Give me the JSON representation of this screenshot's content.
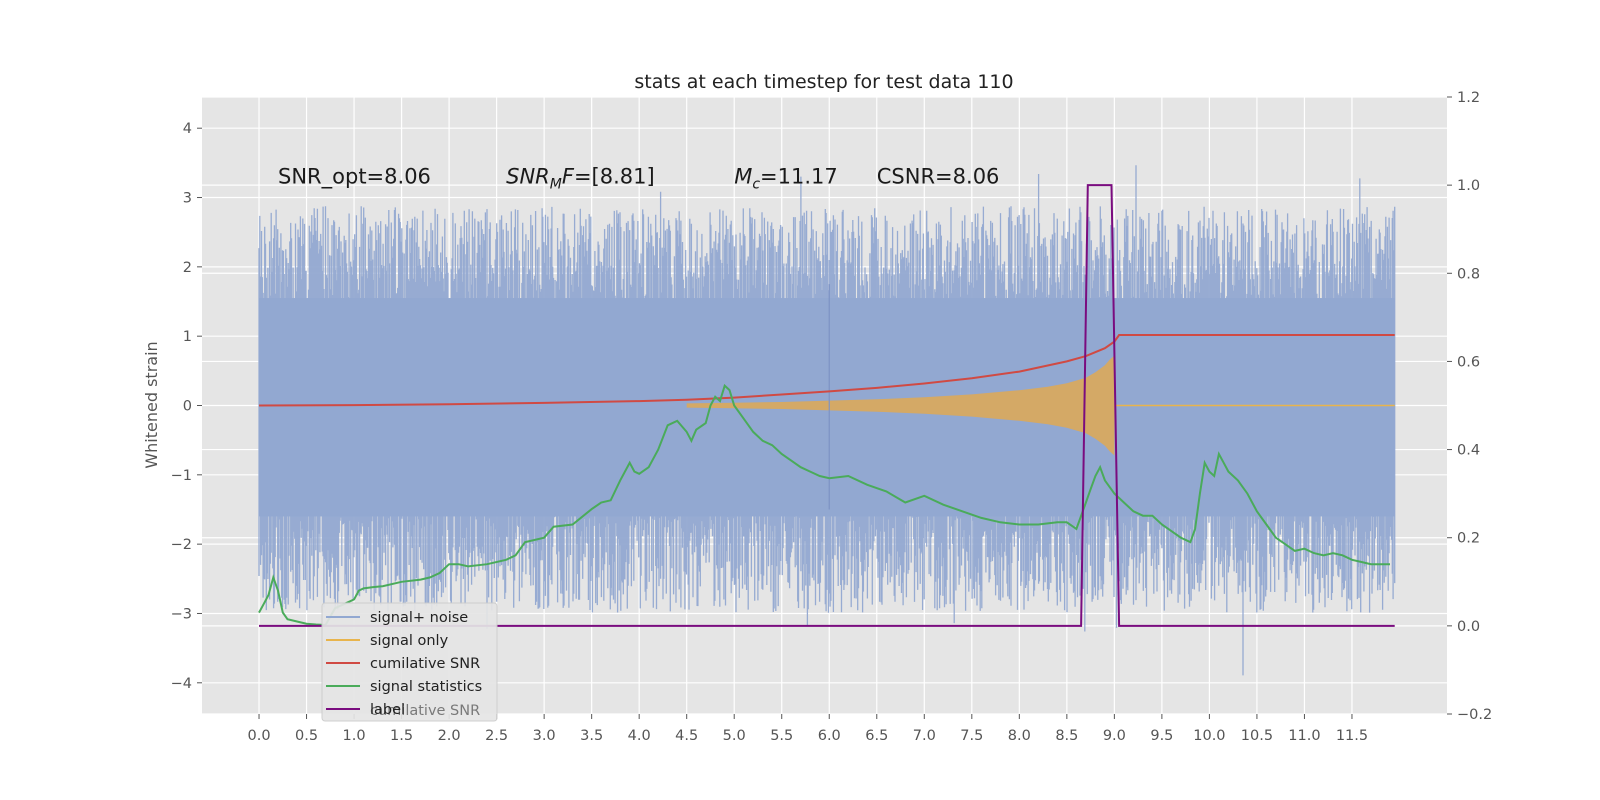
{
  "chart_data": {
    "type": "line",
    "title": "stats at each timestep for test data 110",
    "xlabel": "",
    "ylabel": "Whitened strain",
    "xlim": [
      -0.6,
      12.5
    ],
    "ylim": [
      -4.45,
      4.45
    ],
    "y2lim": [
      -0.2,
      1.2
    ],
    "x_ticks": [
      0.0,
      0.5,
      1.0,
      1.5,
      2.0,
      2.5,
      3.0,
      3.5,
      4.0,
      4.5,
      5.0,
      5.5,
      6.0,
      6.5,
      7.0,
      7.5,
      8.0,
      8.5,
      9.0,
      9.5,
      10.0,
      10.5,
      11.0,
      11.5
    ],
    "x_tick_labels": [
      "0.0",
      "0.5",
      "1.0",
      "1.5",
      "2.0",
      "2.5",
      "3.0",
      "3.5",
      "4.0",
      "4.5",
      "5.0",
      "5.5",
      "6.0",
      "6.5",
      "7.0",
      "7.5",
      "8.0",
      "8.5",
      "9.0",
      "9.5",
      "10.0",
      "10.5",
      "11.0",
      "11.5"
    ],
    "y_ticks": [
      -4,
      -3,
      -2,
      -1,
      0,
      1,
      2,
      3,
      4
    ],
    "y_tick_labels": [
      "−4",
      "−3",
      "−2",
      "−1",
      "0",
      "1",
      "2",
      "3",
      "4"
    ],
    "y2_ticks": [
      -0.2,
      0.0,
      0.2,
      0.4,
      0.6,
      0.8,
      1.0,
      1.2
    ],
    "y2_tick_labels": [
      "−0.2",
      "0.0",
      "0.2",
      "0.4",
      "0.6",
      "0.8",
      "1.0",
      "1.2"
    ],
    "grid": true,
    "legend_position": "lower-left",
    "annotations": [
      {
        "text": "SNR_opt=8.06",
        "x": 0.2,
        "y": 3.3
      },
      {
        "text": "SNR_MF=[8.81]",
        "x": 2.6,
        "y": 3.3
      },
      {
        "text": "M_c=11.17",
        "x": 5.0,
        "y": 3.3
      },
      {
        "text": "CSNR=8.06",
        "x": 6.5,
        "y": 3.3
      }
    ],
    "noise_band": {
      "x_start": 0.0,
      "x_end": 11.95,
      "y_low": -2.6,
      "y_high": 2.5
    },
    "signal_envelope": [
      [
        4.5,
        0.03
      ],
      [
        5.0,
        0.04
      ],
      [
        5.5,
        0.05
      ],
      [
        6.0,
        0.07
      ],
      [
        6.5,
        0.09
      ],
      [
        7.0,
        0.12
      ],
      [
        7.5,
        0.16
      ],
      [
        8.0,
        0.22
      ],
      [
        8.3,
        0.27
      ],
      [
        8.5,
        0.32
      ],
      [
        8.7,
        0.4
      ],
      [
        8.8,
        0.48
      ],
      [
        8.9,
        0.58
      ],
      [
        8.95,
        0.66
      ],
      [
        9.0,
        0.72
      ]
    ],
    "series": [
      {
        "name": "signal+ noise",
        "axis": "left",
        "color": "#92a8d1",
        "note_style": "dense noise"
      },
      {
        "name": "signal only",
        "axis": "left",
        "color": "#e8b44c"
      },
      {
        "name": "cumilative SNR",
        "axis": "right",
        "color": "#d04a43",
        "points": [
          [
            0.0,
            0.5
          ],
          [
            1.0,
            0.501
          ],
          [
            2.0,
            0.503
          ],
          [
            3.0,
            0.506
          ],
          [
            4.0,
            0.51
          ],
          [
            4.5,
            0.513
          ],
          [
            5.0,
            0.518
          ],
          [
            5.5,
            0.525
          ],
          [
            6.0,
            0.532
          ],
          [
            6.5,
            0.54
          ],
          [
            7.0,
            0.55
          ],
          [
            7.5,
            0.562
          ],
          [
            8.0,
            0.577
          ],
          [
            8.5,
            0.6
          ],
          [
            8.7,
            0.612
          ],
          [
            8.9,
            0.63
          ],
          [
            9.0,
            0.645
          ],
          [
            9.05,
            0.66
          ],
          [
            11.95,
            0.66
          ]
        ]
      },
      {
        "name": "signal statistics",
        "axis": "right",
        "color": "#4aab5a",
        "points": [
          [
            0.0,
            0.03
          ],
          [
            0.05,
            0.05
          ],
          [
            0.1,
            0.07
          ],
          [
            0.15,
            0.11
          ],
          [
            0.2,
            0.08
          ],
          [
            0.25,
            0.03
          ],
          [
            0.3,
            0.015
          ],
          [
            0.4,
            0.01
          ],
          [
            0.5,
            0.005
          ],
          [
            0.6,
            0.003
          ],
          [
            0.7,
            0.002
          ],
          [
            0.8,
            0.04
          ],
          [
            0.9,
            0.05
          ],
          [
            1.0,
            0.06
          ],
          [
            1.05,
            0.08
          ],
          [
            1.1,
            0.085
          ],
          [
            1.2,
            0.088
          ],
          [
            1.3,
            0.09
          ],
          [
            1.5,
            0.1
          ],
          [
            1.7,
            0.105
          ],
          [
            1.8,
            0.11
          ],
          [
            1.9,
            0.12
          ],
          [
            2.0,
            0.14
          ],
          [
            2.1,
            0.14
          ],
          [
            2.2,
            0.135
          ],
          [
            2.4,
            0.14
          ],
          [
            2.6,
            0.15
          ],
          [
            2.7,
            0.16
          ],
          [
            2.8,
            0.19
          ],
          [
            3.0,
            0.2
          ],
          [
            3.1,
            0.225
          ],
          [
            3.3,
            0.23
          ],
          [
            3.5,
            0.265
          ],
          [
            3.6,
            0.28
          ],
          [
            3.7,
            0.285
          ],
          [
            3.8,
            0.33
          ],
          [
            3.9,
            0.37
          ],
          [
            3.95,
            0.35
          ],
          [
            4.0,
            0.345
          ],
          [
            4.1,
            0.36
          ],
          [
            4.2,
            0.4
          ],
          [
            4.3,
            0.455
          ],
          [
            4.4,
            0.465
          ],
          [
            4.5,
            0.44
          ],
          [
            4.55,
            0.42
          ],
          [
            4.6,
            0.445
          ],
          [
            4.7,
            0.46
          ],
          [
            4.75,
            0.5
          ],
          [
            4.8,
            0.52
          ],
          [
            4.85,
            0.51
          ],
          [
            4.9,
            0.545
          ],
          [
            4.95,
            0.535
          ],
          [
            5.0,
            0.5
          ],
          [
            5.1,
            0.47
          ],
          [
            5.2,
            0.44
          ],
          [
            5.3,
            0.42
          ],
          [
            5.4,
            0.41
          ],
          [
            5.5,
            0.39
          ],
          [
            5.6,
            0.375
          ],
          [
            5.7,
            0.36
          ],
          [
            5.8,
            0.35
          ],
          [
            5.9,
            0.34
          ],
          [
            6.0,
            0.335
          ],
          [
            6.2,
            0.34
          ],
          [
            6.4,
            0.32
          ],
          [
            6.6,
            0.305
          ],
          [
            6.8,
            0.28
          ],
          [
            7.0,
            0.295
          ],
          [
            7.2,
            0.275
          ],
          [
            7.4,
            0.26
          ],
          [
            7.6,
            0.245
          ],
          [
            7.8,
            0.235
          ],
          [
            8.0,
            0.23
          ],
          [
            8.2,
            0.23
          ],
          [
            8.4,
            0.235
          ],
          [
            8.5,
            0.235
          ],
          [
            8.6,
            0.22
          ],
          [
            8.7,
            0.28
          ],
          [
            8.75,
            0.31
          ],
          [
            8.8,
            0.34
          ],
          [
            8.85,
            0.36
          ],
          [
            8.9,
            0.33
          ],
          [
            9.0,
            0.3
          ],
          [
            9.1,
            0.28
          ],
          [
            9.2,
            0.26
          ],
          [
            9.3,
            0.25
          ],
          [
            9.4,
            0.25
          ],
          [
            9.5,
            0.23
          ],
          [
            9.6,
            0.215
          ],
          [
            9.7,
            0.2
          ],
          [
            9.8,
            0.19
          ],
          [
            9.85,
            0.22
          ],
          [
            9.9,
            0.3
          ],
          [
            9.95,
            0.37
          ],
          [
            10.0,
            0.35
          ],
          [
            10.05,
            0.34
          ],
          [
            10.1,
            0.39
          ],
          [
            10.15,
            0.37
          ],
          [
            10.2,
            0.35
          ],
          [
            10.3,
            0.33
          ],
          [
            10.4,
            0.3
          ],
          [
            10.5,
            0.26
          ],
          [
            10.6,
            0.23
          ],
          [
            10.7,
            0.2
          ],
          [
            10.8,
            0.185
          ],
          [
            10.9,
            0.17
          ],
          [
            11.0,
            0.175
          ],
          [
            11.1,
            0.165
          ],
          [
            11.2,
            0.16
          ],
          [
            11.3,
            0.165
          ],
          [
            11.4,
            0.16
          ],
          [
            11.5,
            0.15
          ],
          [
            11.6,
            0.145
          ],
          [
            11.7,
            0.14
          ],
          [
            11.8,
            0.14
          ],
          [
            11.9,
            0.14
          ]
        ]
      },
      {
        "name": "label",
        "axis": "right",
        "color": "#7a0c7f",
        "points": [
          [
            0.0,
            0.0
          ],
          [
            8.65,
            0.0
          ],
          [
            8.72,
            1.0
          ],
          [
            8.97,
            1.0
          ],
          [
            9.05,
            0.0
          ],
          [
            11.95,
            0.0
          ]
        ]
      }
    ],
    "legend_overlap_text": "cumilative SNR",
    "overlay_vertical": [
      0.0,
      6.0
    ]
  }
}
